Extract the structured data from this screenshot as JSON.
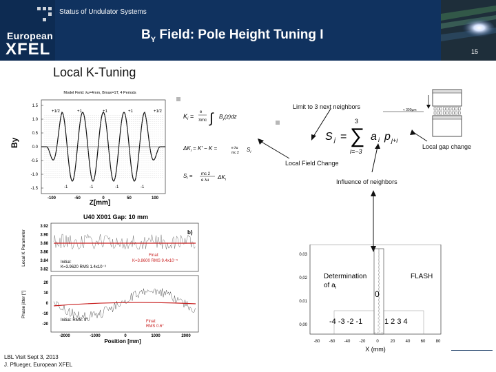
{
  "header": {
    "section": "Status of Undulator Systems",
    "logo_line1": "European",
    "logo_line2": "XFEL",
    "title_main": "B",
    "title_sub": "Y",
    "title_rest": " Field: Pole Height Tuning I",
    "page_number": "15"
  },
  "slide": {
    "heading": "Local K-Tuning",
    "limit_text": "Limit to 3 next neighbors",
    "gap_label": "≈ 300µm",
    "local_gap_change": "Local gap change",
    "local_field_change": "Local Field Change",
    "influence_of_neighbors": "Influence of neighbors",
    "determination_line1": "Determination",
    "determination_line2": "of a",
    "determination_sub": "i",
    "flash_label": "FLASH",
    "footer_line1": "LBL Visit Sept 3, 2013",
    "footer_line2": "J. Pflueger, European XFEL"
  },
  "formulas": {
    "k_formula_lhs": "K",
    "k_formula_sub": "i",
    "delta_k": "ΔK",
    "s_formula": "S",
    "sum_formula": "S",
    "sum_upper": "3",
    "sum_lower": "i=−3",
    "sum_terms": "a"
  },
  "plot_field": {
    "title": "Model Field: λu=4mm, Bmax=1T, 4 Periods",
    "ylabel": "By",
    "xlabel": "Z[mm]",
    "yticks": [
      "1.5",
      "1.0",
      "0.5",
      "0.0",
      "-0.5",
      "-1.0",
      "-1.5"
    ],
    "xticks": [
      "-100",
      "-50",
      "0",
      "50",
      "100"
    ],
    "pole_labels_top": [
      "+1/2",
      "+1",
      "+1",
      "+1",
      "+1/2"
    ],
    "pole_labels_bottom": [
      "-1",
      "-1",
      "-1",
      "-1"
    ]
  },
  "plot_phase": {
    "title": "U40   X001   Gap: 10 mm",
    "ylabel_top": "Local K Parameter",
    "ylabel_bottom": "Phase jitter [°]",
    "xlabel": "Position [mm]",
    "yticks_top": [
      "3.92",
      "3.90",
      "3.88",
      "3.86",
      "3.84",
      "3.82"
    ],
    "yticks_bottom": [
      "20",
      "10",
      "0",
      "-10",
      "-20"
    ],
    "xticks": [
      "-2000",
      "-1000",
      "0",
      "1000",
      "2000"
    ],
    "panel_b": "b)",
    "initial_k": "Initial:",
    "initial_k_values": "K=3.9620  RMS 1.4x10⁻³",
    "final_k": "Final:",
    "final_k_values": "K=3.8600  RMS 9.4x10⁻⁵",
    "final_phase": "Final:",
    "final_phase_values": "RMS 0.6°",
    "initial_phase": "Initial: RMS: 9°"
  },
  "plot_flash": {
    "yticks": [
      "0,03",
      "0,02",
      "0,01",
      "0,00"
    ],
    "xticks": [
      "-80",
      "-60",
      "-40",
      "-20",
      "0",
      "20",
      "40",
      "60",
      "80"
    ],
    "xlabel": "X (mm)",
    "center_label": "0",
    "neg_labels": "-4  -3  -2  -1",
    "pos_labels": "1   2   3   4"
  }
}
